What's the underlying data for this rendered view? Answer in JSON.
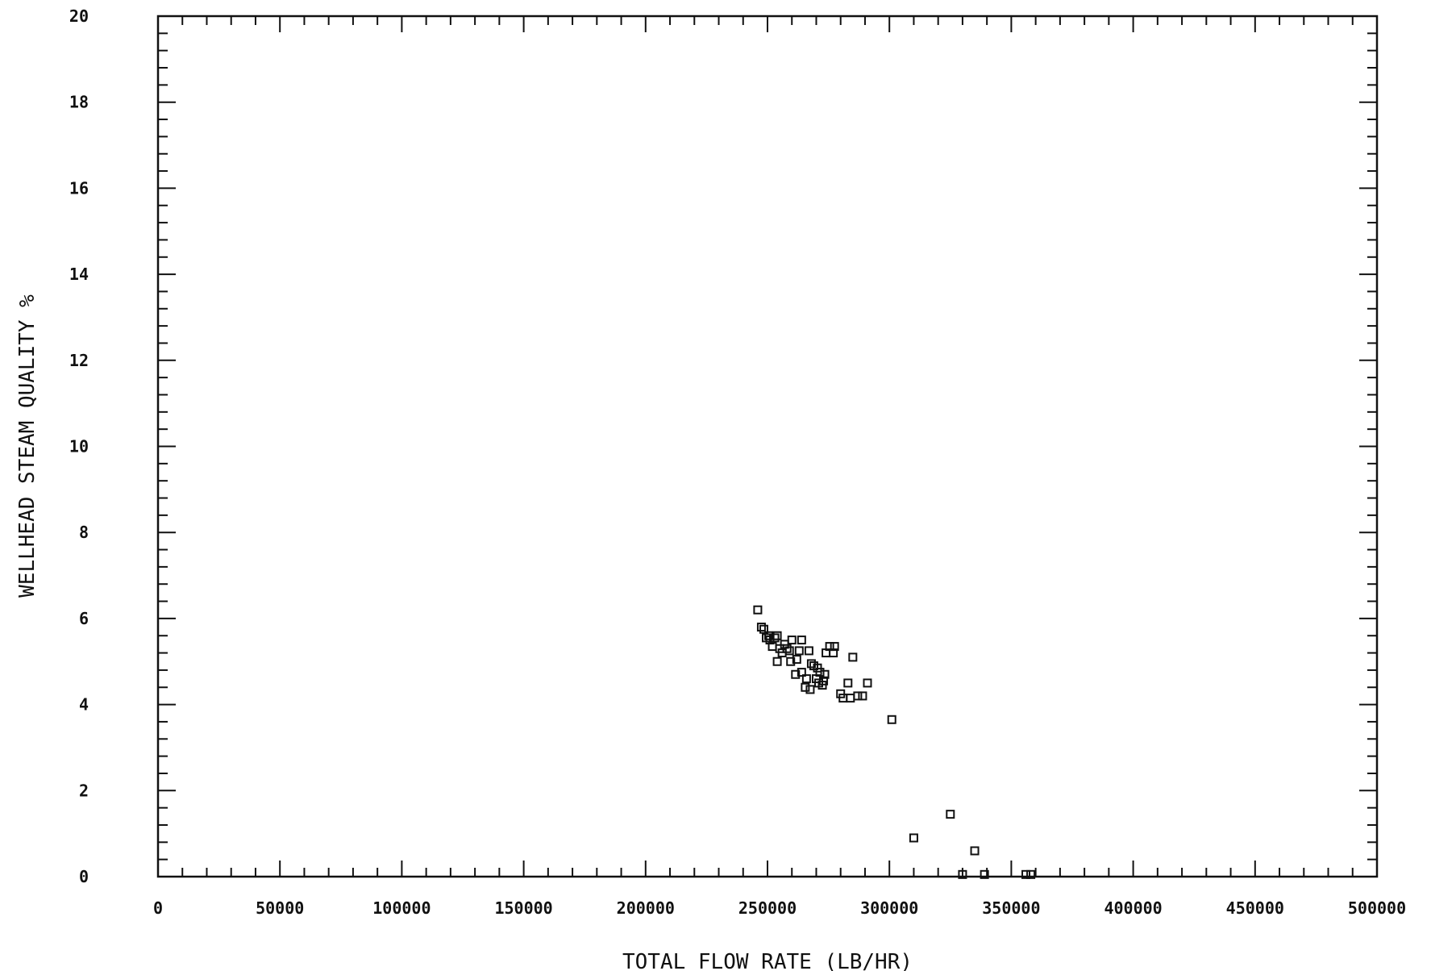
{
  "chart_data": {
    "type": "scatter",
    "title": "",
    "xlabel": "TOTAL FLOW RATE (LB/HR)",
    "ylabel": "WELLHEAD STEAM QUALITY %",
    "xlim": [
      0,
      500000
    ],
    "ylim": [
      0,
      20
    ],
    "x_ticks": [
      0,
      50000,
      100000,
      150000,
      200000,
      250000,
      300000,
      350000,
      400000,
      450000,
      500000
    ],
    "x_tick_labels": [
      "0",
      "50000",
      "100000",
      "150000",
      "200000",
      "250000",
      "300000",
      "350000",
      "400000",
      "450000",
      "500000"
    ],
    "y_ticks": [
      0,
      2,
      4,
      6,
      8,
      10,
      12,
      14,
      16,
      18,
      20
    ],
    "y_tick_labels": [
      "0",
      "2",
      "4",
      "6",
      "8",
      "10",
      "12",
      "14",
      "16",
      "18",
      "20"
    ],
    "grid": false,
    "marker": "open-square",
    "color": "#111111",
    "points": [
      [
        246000,
        6.2
      ],
      [
        247500,
        5.8
      ],
      [
        248500,
        5.75
      ],
      [
        249500,
        5.55
      ],
      [
        250500,
        5.6
      ],
      [
        251000,
        5.5
      ],
      [
        252000,
        5.35
      ],
      [
        253000,
        5.55
      ],
      [
        254000,
        5.6
      ],
      [
        254000,
        5.0
      ],
      [
        255000,
        5.3
      ],
      [
        256000,
        5.2
      ],
      [
        257000,
        5.4
      ],
      [
        258000,
        5.3
      ],
      [
        259000,
        5.25
      ],
      [
        259500,
        5.0
      ],
      [
        260000,
        5.5
      ],
      [
        261500,
        4.7
      ],
      [
        262000,
        5.05
      ],
      [
        263000,
        5.25
      ],
      [
        264000,
        5.5
      ],
      [
        264000,
        4.75
      ],
      [
        265500,
        4.4
      ],
      [
        266000,
        4.6
      ],
      [
        267000,
        5.25
      ],
      [
        267500,
        4.35
      ],
      [
        268000,
        4.95
      ],
      [
        269000,
        4.9
      ],
      [
        270000,
        4.6
      ],
      [
        270500,
        4.85
      ],
      [
        271000,
        4.5
      ],
      [
        271500,
        4.75
      ],
      [
        272500,
        4.45
      ],
      [
        273000,
        4.55
      ],
      [
        273500,
        4.7
      ],
      [
        274000,
        5.2
      ],
      [
        275500,
        5.35
      ],
      [
        277000,
        5.2
      ],
      [
        277500,
        5.35
      ],
      [
        280000,
        4.25
      ],
      [
        281000,
        4.15
      ],
      [
        283000,
        4.5
      ],
      [
        284000,
        4.15
      ],
      [
        285000,
        5.1
      ],
      [
        287000,
        4.2
      ],
      [
        289000,
        4.2
      ],
      [
        291000,
        4.5
      ],
      [
        301000,
        3.65
      ],
      [
        310000,
        0.9
      ],
      [
        325000,
        1.45
      ],
      [
        330000,
        0.05
      ],
      [
        335000,
        0.6
      ],
      [
        339000,
        0.05
      ],
      [
        356000,
        0.05
      ],
      [
        358000,
        0.05
      ]
    ]
  }
}
